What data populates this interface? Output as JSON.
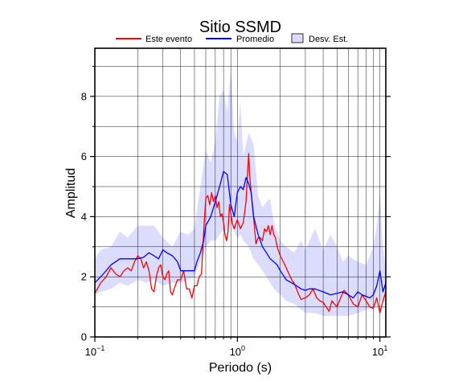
{
  "chart_data": {
    "type": "line",
    "title": "Sitio SSMD",
    "xlabel": "Periodo (s)",
    "ylabel": "Amplitud",
    "xscale": "log",
    "xlim": [
      0.1,
      11
    ],
    "ylim": [
      0,
      9.6
    ],
    "grid": true,
    "legend_placement": "top-center",
    "x_ticks": [
      {
        "value": 0.1,
        "base": "10",
        "exp": "−1"
      },
      {
        "value": 1,
        "base": "10",
        "exp": "0"
      },
      {
        "value": 10,
        "base": "10",
        "exp": "1"
      }
    ],
    "y_ticks": [
      {
        "value": 0,
        "label": "0"
      },
      {
        "value": 2,
        "label": "2"
      },
      {
        "value": 4,
        "label": "4"
      },
      {
        "value": 6,
        "label": "6"
      },
      {
        "value": 8,
        "label": "8"
      }
    ],
    "legend": [
      {
        "label": "Este evento",
        "kind": "line",
        "color": "#ff0000"
      },
      {
        "label": "Promedio",
        "kind": "line",
        "color": "#0000ff"
      },
      {
        "label": "Desv. Est.",
        "kind": "patch",
        "color": "#dcdcff"
      }
    ],
    "band": {
      "name": "Desv. Est.",
      "color": "#dcdcff",
      "x": [
        0.1,
        0.11,
        0.13,
        0.15,
        0.17,
        0.2,
        0.23,
        0.26,
        0.3,
        0.35,
        0.4,
        0.45,
        0.5,
        0.55,
        0.6,
        0.65,
        0.7,
        0.75,
        0.8,
        0.85,
        0.9,
        0.95,
        1.0,
        1.05,
        1.1,
        1.2,
        1.3,
        1.4,
        1.5,
        1.6,
        1.7,
        1.8,
        2.0,
        2.2,
        2.5,
        2.8,
        3.0,
        3.5,
        4.0,
        4.5,
        5.0,
        5.5,
        6.0,
        7.0,
        8.0,
        9.0,
        9.5,
        10.0,
        10.5,
        11.0
      ],
      "upper": [
        2.6,
        2.9,
        3.0,
        3.5,
        3.3,
        3.7,
        3.7,
        3.7,
        3.3,
        3.0,
        3.5,
        3.4,
        3.6,
        5.0,
        6.2,
        5.8,
        6.5,
        8.0,
        8.2,
        7.5,
        8.9,
        6.8,
        6.5,
        7.8,
        6.0,
        6.8,
        6.4,
        4.7,
        4.3,
        4.5,
        4.6,
        3.8,
        3.2,
        3.0,
        2.8,
        3.2,
        2.9,
        3.6,
        2.9,
        3.4,
        3.0,
        2.5,
        2.7,
        2.5,
        2.4,
        3.0,
        3.7,
        4.8,
        3.0,
        2.3
      ],
      "lower": [
        1.4,
        1.5,
        1.6,
        1.8,
        1.7,
        1.9,
        1.8,
        1.9,
        1.7,
        1.8,
        1.8,
        1.9,
        2.0,
        2.5,
        3.0,
        3.2,
        3.2,
        3.4,
        3.6,
        3.5,
        3.8,
        3.5,
        3.3,
        3.4,
        3.2,
        3.0,
        2.6,
        2.4,
        2.2,
        2.0,
        1.8,
        1.6,
        1.4,
        1.2,
        1.1,
        0.9,
        0.8,
        0.8,
        0.7,
        0.7,
        0.7,
        0.7,
        0.7,
        0.8,
        0.9,
        1.0,
        1.1,
        1.2,
        1.2,
        1.2
      ]
    },
    "series": [
      {
        "name": "Este evento",
        "color": "#ff0000",
        "x": [
          0.1,
          0.11,
          0.12,
          0.13,
          0.14,
          0.15,
          0.16,
          0.17,
          0.18,
          0.19,
          0.2,
          0.21,
          0.22,
          0.23,
          0.24,
          0.25,
          0.26,
          0.27,
          0.28,
          0.29,
          0.3,
          0.31,
          0.32,
          0.33,
          0.34,
          0.35,
          0.36,
          0.38,
          0.4,
          0.42,
          0.44,
          0.46,
          0.48,
          0.5,
          0.52,
          0.54,
          0.56,
          0.58,
          0.6,
          0.62,
          0.64,
          0.66,
          0.68,
          0.7,
          0.72,
          0.74,
          0.76,
          0.78,
          0.8,
          0.82,
          0.84,
          0.86,
          0.88,
          0.9,
          0.92,
          0.95,
          1.0,
          1.05,
          1.1,
          1.15,
          1.18,
          1.2,
          1.22,
          1.25,
          1.3,
          1.35,
          1.4,
          1.45,
          1.5,
          1.55,
          1.6,
          1.65,
          1.7,
          1.75,
          1.8,
          1.85,
          1.9,
          2.0,
          2.1,
          2.2,
          2.3,
          2.4,
          2.5,
          2.6,
          2.7,
          2.8,
          3.0,
          3.2,
          3.4,
          3.6,
          3.8,
          4.0,
          4.2,
          4.4,
          4.6,
          4.8,
          5.0,
          5.3,
          5.6,
          6.0,
          6.5,
          7.0,
          7.5,
          8.0,
          8.5,
          9.0,
          9.5,
          10.0,
          10.5,
          11.0
        ],
        "y": [
          1.45,
          1.8,
          2.0,
          2.3,
          2.1,
          2.0,
          2.2,
          2.3,
          2.2,
          2.5,
          2.7,
          2.6,
          2.3,
          2.5,
          2.2,
          1.6,
          1.5,
          2.0,
          2.3,
          2.4,
          2.0,
          1.9,
          2.1,
          2.2,
          1.5,
          1.4,
          1.6,
          1.9,
          1.9,
          2.2,
          1.6,
          1.6,
          1.3,
          1.7,
          1.7,
          2.0,
          2.1,
          3.5,
          4.6,
          4.7,
          4.4,
          4.8,
          4.5,
          4.7,
          4.3,
          4.5,
          4.0,
          4.1,
          3.8,
          3.4,
          3.2,
          3.5,
          4.4,
          4.1,
          3.8,
          3.6,
          3.9,
          3.6,
          3.8,
          4.5,
          5.5,
          6.1,
          5.4,
          4.8,
          4.0,
          3.1,
          3.3,
          3.3,
          3.2,
          3.6,
          3.5,
          3.7,
          3.4,
          3.7,
          3.4,
          3.3,
          3.0,
          2.7,
          2.5,
          2.3,
          2.1,
          1.9,
          1.8,
          1.6,
          1.4,
          1.25,
          1.3,
          1.4,
          1.6,
          1.3,
          1.2,
          1.15,
          1.0,
          0.85,
          1.2,
          1.1,
          1.0,
          1.3,
          1.55,
          1.4,
          1.1,
          1.0,
          1.4,
          1.2,
          1.0,
          0.95,
          1.3,
          0.8,
          1.2,
          1.5
        ]
      },
      {
        "name": "Promedio",
        "color": "#0000ff",
        "x": [
          0.1,
          0.11,
          0.12,
          0.13,
          0.15,
          0.17,
          0.2,
          0.22,
          0.24,
          0.26,
          0.28,
          0.3,
          0.32,
          0.35,
          0.38,
          0.4,
          0.45,
          0.5,
          0.52,
          0.55,
          0.58,
          0.6,
          0.65,
          0.7,
          0.75,
          0.8,
          0.85,
          0.9,
          0.95,
          1.0,
          1.05,
          1.1,
          1.15,
          1.2,
          1.25,
          1.3,
          1.4,
          1.5,
          1.6,
          1.7,
          1.8,
          1.9,
          2.0,
          2.2,
          2.4,
          2.6,
          2.8,
          3.0,
          3.2,
          3.5,
          4.0,
          4.5,
          5.0,
          5.5,
          6.0,
          6.5,
          7.0,
          7.5,
          8.0,
          8.5,
          9.0,
          9.5,
          10.0,
          10.5,
          11.0
        ],
        "y": [
          1.8,
          2.0,
          2.2,
          2.4,
          2.6,
          2.6,
          2.6,
          2.65,
          2.8,
          2.7,
          2.6,
          2.9,
          2.8,
          2.7,
          2.5,
          2.2,
          2.2,
          2.2,
          2.5,
          2.8,
          3.2,
          3.7,
          4.0,
          4.5,
          5.0,
          5.5,
          5.4,
          4.4,
          4.0,
          4.8,
          5.0,
          4.9,
          5.3,
          5.1,
          4.8,
          4.0,
          3.4,
          3.0,
          2.8,
          2.6,
          2.5,
          2.4,
          2.2,
          1.9,
          1.8,
          1.7,
          1.6,
          1.55,
          1.6,
          1.6,
          1.5,
          1.4,
          1.45,
          1.5,
          1.4,
          1.3,
          1.5,
          1.4,
          1.35,
          1.3,
          1.4,
          1.7,
          2.2,
          1.5,
          1.8
        ]
      }
    ]
  }
}
